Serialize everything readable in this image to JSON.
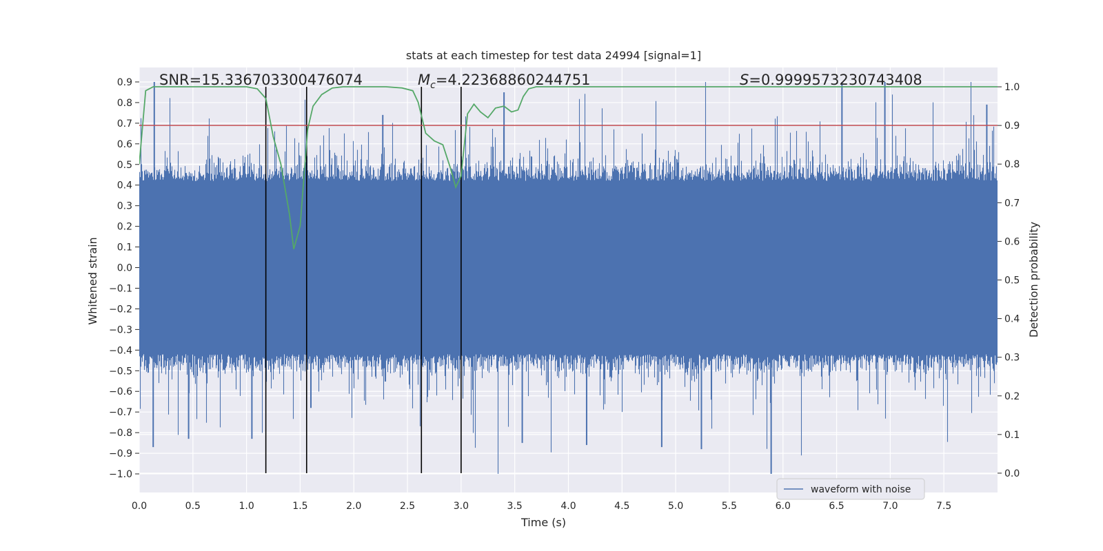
{
  "chart_data": {
    "type": "line",
    "title": "stats at each timestep for test data 24994 [signal=1]",
    "xlabel": "Time (s)",
    "ylabel_left": "Whitened strain",
    "ylabel_right": "Detection probability",
    "xlim": [
      0.0,
      8.0
    ],
    "ylim_left": [
      -1.09,
      0.97
    ],
    "ylim_right": [
      -0.05,
      1.05
    ],
    "grid": true,
    "xticks": [
      "0.0",
      "0.5",
      "1.0",
      "1.5",
      "2.0",
      "2.5",
      "3.0",
      "3.5",
      "4.0",
      "4.5",
      "5.0",
      "5.5",
      "6.0",
      "6.5",
      "7.0",
      "7.5"
    ],
    "xtick_values": [
      0.0,
      0.5,
      1.0,
      1.5,
      2.0,
      2.5,
      3.0,
      3.5,
      4.0,
      4.5,
      5.0,
      5.5,
      6.0,
      6.5,
      7.0,
      7.5
    ],
    "yticks_left": [
      "0.9",
      "0.8",
      "0.7",
      "0.6",
      "0.5",
      "0.4",
      "0.3",
      "0.2",
      "0.1",
      "0.0",
      "−0.1",
      "−0.2",
      "−0.3",
      "−0.4",
      "−0.5",
      "−0.6",
      "−0.7",
      "−0.8",
      "−0.9",
      "−1.0"
    ],
    "ytick_values_left": [
      0.9,
      0.8,
      0.7,
      0.6,
      0.5,
      0.4,
      0.3,
      0.2,
      0.1,
      0.0,
      -0.1,
      -0.2,
      -0.3,
      -0.4,
      -0.5,
      -0.6,
      -0.7,
      -0.8,
      -0.9,
      -1.0
    ],
    "yticks_right": [
      "1.0",
      "0.9",
      "0.8",
      "0.7",
      "0.6",
      "0.5",
      "0.4",
      "0.3",
      "0.2",
      "0.1",
      "0.0"
    ],
    "ytick_values_right": [
      1.0,
      0.9,
      0.8,
      0.7,
      0.6,
      0.5,
      0.4,
      0.3,
      0.2,
      0.1,
      0.0
    ],
    "annotations": {
      "snr_prefix": "SNR=",
      "snr_value": "15.336703300476074",
      "mc_symbol": "M",
      "mc_subscript": "c",
      "mc_value": "=4.22368860244751",
      "s_symbol": "S",
      "s_value": "=0.9999573230743408"
    },
    "threshold": {
      "value": 0.9,
      "axis": "right",
      "color": "#c44e52"
    },
    "vlines": [
      1.18,
      1.56,
      2.63,
      3.0
    ],
    "series": [
      {
        "name": "waveform with noise",
        "axis": "left",
        "color": "#4c72b0",
        "kind": "noise-strain",
        "sample_rate": 2048,
        "typical_range": [
          -0.42,
          0.42
        ],
        "min": -1.0,
        "max": 0.9,
        "peaks": [
          {
            "x": 0.14,
            "y": 0.9
          },
          {
            "x": 0.13,
            "y": -0.87
          },
          {
            "x": 0.46,
            "y": -0.83
          },
          {
            "x": 1.05,
            "y": -0.83
          },
          {
            "x": 2.27,
            "y": 0.74
          },
          {
            "x": 3.4,
            "y": 0.85
          },
          {
            "x": 3.57,
            "y": -0.85
          },
          {
            "x": 4.17,
            "y": -0.86
          },
          {
            "x": 4.87,
            "y": -0.87
          },
          {
            "x": 5.24,
            "y": -0.88
          },
          {
            "x": 5.89,
            "y": -1.0
          },
          {
            "x": 6.55,
            "y": 0.9
          },
          {
            "x": 6.95,
            "y": 0.9
          },
          {
            "x": 7.9,
            "y": 0.79
          },
          {
            "x": 1.6,
            "y": -0.68
          }
        ]
      },
      {
        "name": "detection probability",
        "axis": "right",
        "color": "#55a868",
        "x": [
          0.0,
          0.06,
          0.13,
          0.2,
          0.5,
          0.8,
          1.0,
          1.1,
          1.18,
          1.25,
          1.32,
          1.4,
          1.44,
          1.5,
          1.57,
          1.62,
          1.7,
          1.8,
          1.9,
          2.0,
          2.3,
          2.45,
          2.55,
          2.6,
          2.67,
          2.75,
          2.83,
          2.9,
          2.95,
          3.0,
          3.06,
          3.12,
          3.18,
          3.25,
          3.32,
          3.4,
          3.47,
          3.53,
          3.58,
          3.63,
          3.7,
          4.0,
          5.0,
          6.0,
          7.0,
          8.0
        ],
        "y": [
          0.8,
          0.99,
          1.0,
          1.0,
          1.0,
          1.0,
          1.0,
          0.995,
          0.97,
          0.87,
          0.8,
          0.67,
          0.58,
          0.64,
          0.89,
          0.95,
          0.98,
          0.997,
          1.0,
          1.0,
          1.0,
          0.997,
          0.99,
          0.96,
          0.88,
          0.86,
          0.85,
          0.79,
          0.74,
          0.77,
          0.93,
          0.955,
          0.935,
          0.92,
          0.945,
          0.95,
          0.935,
          0.94,
          0.975,
          0.995,
          1.0,
          1.0,
          1.0,
          1.0,
          1.0,
          1.0
        ]
      }
    ],
    "legend": {
      "label": "waveform with noise",
      "location": "lower-right"
    }
  }
}
